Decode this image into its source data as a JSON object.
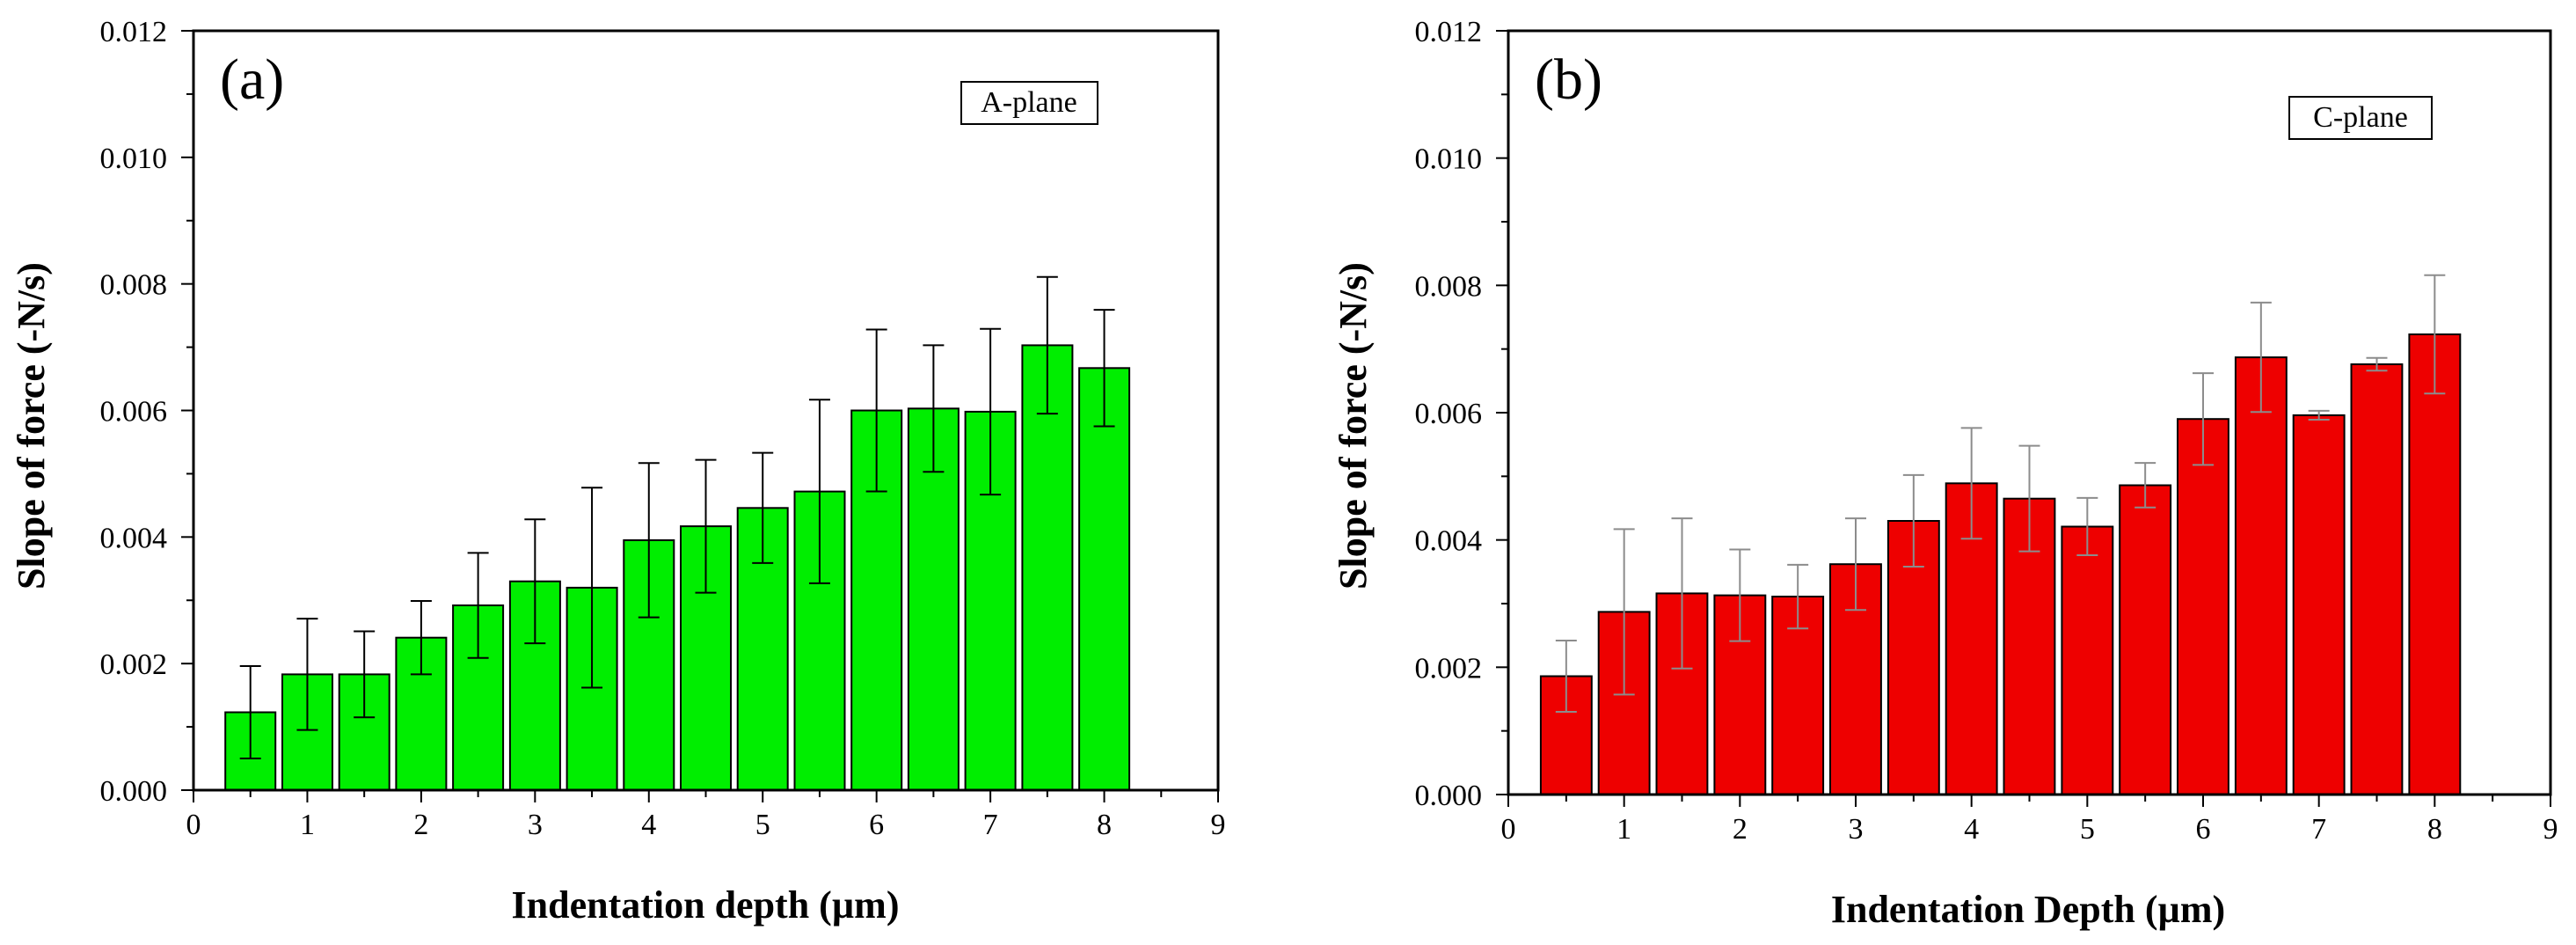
{
  "chart_data": [
    {
      "type": "bar",
      "panel_label": "(a)",
      "legend": "A-plane",
      "xlabel": "Indentation depth (µm)",
      "ylabel": "Slope of force (-N/s)",
      "xlim": [
        0,
        9
      ],
      "ylim": [
        0,
        0.012
      ],
      "x_ticks": [
        "0",
        "1",
        "2",
        "3",
        "4",
        "5",
        "6",
        "7",
        "8",
        "9"
      ],
      "y_ticks": [
        "0.000",
        "0.002",
        "0.004",
        "0.006",
        "0.008",
        "0.010",
        "0.012"
      ],
      "bar_color": "#00ee00",
      "error_color": "#000000",
      "x": [
        0.5,
        1.0,
        1.5,
        2.0,
        2.5,
        3.0,
        3.5,
        4.0,
        4.5,
        5.0,
        5.5,
        6.0,
        6.5,
        7.0,
        7.5,
        8.0
      ],
      "values": [
        0.00123,
        0.00183,
        0.00183,
        0.00241,
        0.00292,
        0.0033,
        0.0032,
        0.00395,
        0.00417,
        0.00446,
        0.00472,
        0.006,
        0.00603,
        0.00598,
        0.00703,
        0.00667
      ],
      "errors": [
        0.00073,
        0.00088,
        0.00068,
        0.00058,
        0.00083,
        0.00098,
        0.00158,
        0.00122,
        0.00105,
        0.00087,
        0.00145,
        0.00128,
        0.001,
        0.00131,
        0.00108,
        0.00092
      ]
    },
    {
      "type": "bar",
      "panel_label": "(b)",
      "legend": "C-plane",
      "xlabel": "Indentation Depth (µm)",
      "ylabel": "Slope of force (-N/s)",
      "xlim": [
        0,
        9
      ],
      "ylim": [
        0,
        0.012
      ],
      "x_ticks": [
        "0",
        "1",
        "2",
        "3",
        "4",
        "5",
        "6",
        "7",
        "8",
        "9"
      ],
      "y_ticks": [
        "0.000",
        "0.002",
        "0.004",
        "0.006",
        "0.008",
        "0.010",
        "0.012"
      ],
      "bar_color": "#ee0000",
      "error_color": "#8c8c8c",
      "x": [
        0.5,
        1.0,
        1.5,
        2.0,
        2.5,
        3.0,
        3.5,
        4.0,
        4.5,
        5.0,
        5.5,
        6.0,
        6.5,
        7.0,
        7.5,
        8.0
      ],
      "values": [
        0.00186,
        0.00287,
        0.00316,
        0.00313,
        0.00311,
        0.00362,
        0.0043,
        0.00489,
        0.00465,
        0.00421,
        0.00486,
        0.0059,
        0.00687,
        0.00596,
        0.00676,
        0.00723
      ],
      "errors": [
        0.00056,
        0.0013,
        0.00118,
        0.00072,
        0.0005,
        0.00072,
        0.00072,
        0.00087,
        0.00083,
        0.00045,
        0.00035,
        0.00072,
        0.00086,
        7e-05,
        0.0001,
        0.00093
      ]
    }
  ]
}
